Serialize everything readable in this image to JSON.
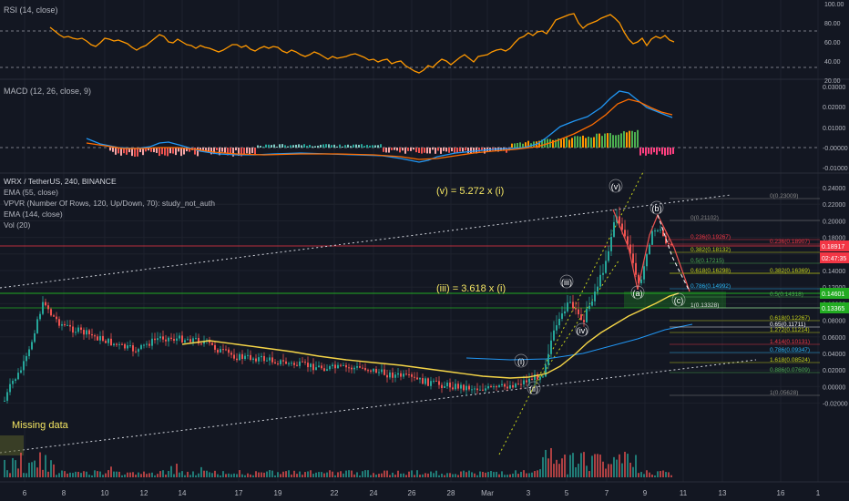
{
  "panels": {
    "rsi": {
      "legend": "RSI (14, close)",
      "ticks": [
        "100.00",
        "80.00",
        "60.00",
        "40.00",
        "20.00"
      ]
    },
    "macd": {
      "legend": "MACD (12, 26, close, 9)",
      "ticks": [
        "0.03000",
        "0.02000",
        "0.01000",
        "-0.00000",
        "-0.01000"
      ]
    },
    "main": {
      "legend": [
        "WRX / TetherUS, 240, BINANCE",
        "EMA (55, close)",
        "VPVR (Number Of Rows, 120, Up/Down, 70): study_not_auth",
        "EMA (144, close)",
        "Vol (20)"
      ],
      "ticks": [
        "0.24000",
        "0.22000",
        "0.20000",
        "0.18000",
        "0.16000",
        "0.14000",
        "0.12000",
        "0.10000",
        "0.08000",
        "0.06000",
        "0.04000",
        "0.02000",
        "0.00000",
        "-0.02000"
      ]
    }
  },
  "price_badges": [
    {
      "text": "0.18917",
      "color": "#f23645"
    },
    {
      "text": "02:47:35",
      "color": "#f23645"
    },
    {
      "text": "0.14601",
      "color": "#22ab22"
    },
    {
      "text": "0.13365",
      "color": "#22ab22"
    }
  ],
  "annotations": [
    {
      "text": "(v) = 5.272 x (i)"
    },
    {
      "text": "(iii) = 3.618 x (i)"
    },
    {
      "text": "Missing data"
    }
  ],
  "wave_labels": [
    "(i)",
    "(ii)",
    "(iii)",
    "(iv)",
    "(v)",
    "(a)",
    "(b)",
    "(c)"
  ],
  "fib_levels_left": [
    {
      "text": "0(0.21102)",
      "color": "#888888"
    },
    {
      "text": "0.236(0.19267)",
      "color": "#f23645"
    },
    {
      "text": "0.382(0.18132)",
      "color": "#c7d41a"
    },
    {
      "text": "0.5(0.17215)",
      "color": "#4caf50"
    },
    {
      "text": "0.618(0.16298)",
      "color": "#c7d41a"
    },
    {
      "text": "0.786(0.14992)",
      "color": "#29b6f6"
    },
    {
      "text": "1(0.13328)",
      "color": "#dddddd"
    }
  ],
  "fib_levels_right": [
    {
      "text": "0(0.23009)",
      "color": "#888888"
    },
    {
      "text": "0.236(0.18907)",
      "color": "#f23645"
    },
    {
      "text": "0.382(0.16369)",
      "color": "#c7d41a"
    },
    {
      "text": "0.5(0.14318)",
      "color": "#4caf50"
    },
    {
      "text": "0.618(0.12267)",
      "color": "#c7d41a"
    },
    {
      "text": "0.65(0.11711)",
      "color": "#ffffff"
    },
    {
      "text": "1.272(0.11214)",
      "color": "#c7d41a"
    },
    {
      "text": "1.414(0.10131)",
      "color": "#f23645"
    },
    {
      "text": "0.786(0.09347)",
      "color": "#29b6f6"
    },
    {
      "text": "1.618(0.08524)",
      "color": "#c7d41a"
    },
    {
      "text": "0.886(0.07609)",
      "color": "#4caf50"
    },
    {
      "text": "1(0.05628)",
      "color": "#888888"
    }
  ],
  "x_axis_labels": [
    "6",
    "8",
    "10",
    "12",
    "14",
    "17",
    "19",
    "22",
    "24",
    "26",
    "28",
    "Mar",
    "3",
    "5",
    "7",
    "9",
    "11",
    "13",
    "16",
    "1"
  ],
  "colors": {
    "bg": "#131722",
    "up": "#26a69a",
    "down": "#ef5350",
    "ema55": "#f5d547",
    "rsi": "#ff9800",
    "macd": "#2196f3",
    "signal": "#ff6d00"
  },
  "chart_data": {
    "type": "candlestick",
    "symbol": "WRX / TetherUS",
    "interval": "240",
    "exchange": "BINANCE",
    "ylim": [
      -0.02,
      0.24
    ],
    "ema55": [
      {
        "x": "16",
        "y": 0.108
      },
      {
        "x": "17",
        "y": 0.103
      },
      {
        "x": "19",
        "y": 0.099
      },
      {
        "x": "22",
        "y": 0.094
      },
      {
        "x": "24",
        "y": 0.089
      },
      {
        "x": "26",
        "y": 0.082
      },
      {
        "x": "28",
        "y": 0.074
      },
      {
        "x": "Mar",
        "y": 0.068
      },
      {
        "x": "3",
        "y": 0.068
      },
      {
        "x": "5",
        "y": 0.09
      },
      {
        "x": "7",
        "y": 0.115
      },
      {
        "x": "9",
        "y": 0.135
      },
      {
        "x": "10",
        "y": 0.143
      }
    ],
    "rsi": {
      "ylim": [
        10,
        100
      ],
      "bands": [
        30,
        70
      ],
      "last": 58
    },
    "macd": {
      "ylim": [
        -0.012,
        0.032
      ]
    }
  }
}
